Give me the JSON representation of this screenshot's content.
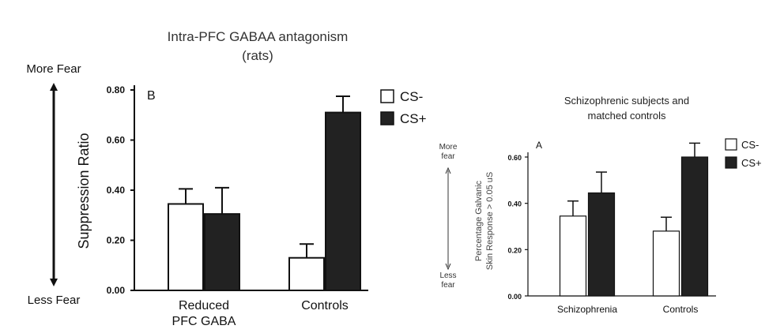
{
  "chart_data": [
    {
      "panel": "B",
      "type": "bar",
      "title": "Intra-PFC GABAA antagonism",
      "subtitle": "(rats)",
      "ylabel": "Suppression Ratio",
      "more_label": "More Fear",
      "less_label": "Less Fear",
      "categories": [
        [
          "Reduced",
          "PFC GABA"
        ],
        [
          "Controls"
        ]
      ],
      "ylim": [
        0,
        0.8
      ],
      "yticks": [
        "0.00",
        "0.20",
        "0.40",
        "0.60",
        "0.80"
      ],
      "series": [
        {
          "name": "CS-",
          "color": "#ffffff",
          "values": [
            0.345,
            0.13
          ],
          "errors": [
            0.06,
            0.055
          ]
        },
        {
          "name": "CS+",
          "color": "#222222",
          "values": [
            0.305,
            0.71
          ],
          "errors": [
            0.105,
            0.065
          ]
        }
      ],
      "legend": "top-right",
      "grid": false
    },
    {
      "panel": "A",
      "type": "bar",
      "title": "Schizophrenic subjects and",
      "subtitle": "matched controls",
      "ylabel_lines": [
        "Percentage Galvanic",
        "Skin Response > 0.05 uS"
      ],
      "more_label": [
        "More",
        "fear"
      ],
      "less_label": [
        "Less",
        "fear"
      ],
      "categories": [
        [
          "Schizophrenia"
        ],
        [
          "Controls"
        ]
      ],
      "ylim": [
        0,
        0.6
      ],
      "yticks": [
        "0.00",
        "0.20",
        "0.40",
        "0.60"
      ],
      "series": [
        {
          "name": "CS-",
          "color": "#ffffff",
          "values": [
            0.345,
            0.28
          ],
          "errors": [
            0.065,
            0.06
          ]
        },
        {
          "name": "CS+",
          "color": "#222222",
          "values": [
            0.445,
            0.6
          ],
          "errors": [
            0.09,
            0.06
          ]
        }
      ],
      "legend": "top-right",
      "grid": false
    }
  ]
}
